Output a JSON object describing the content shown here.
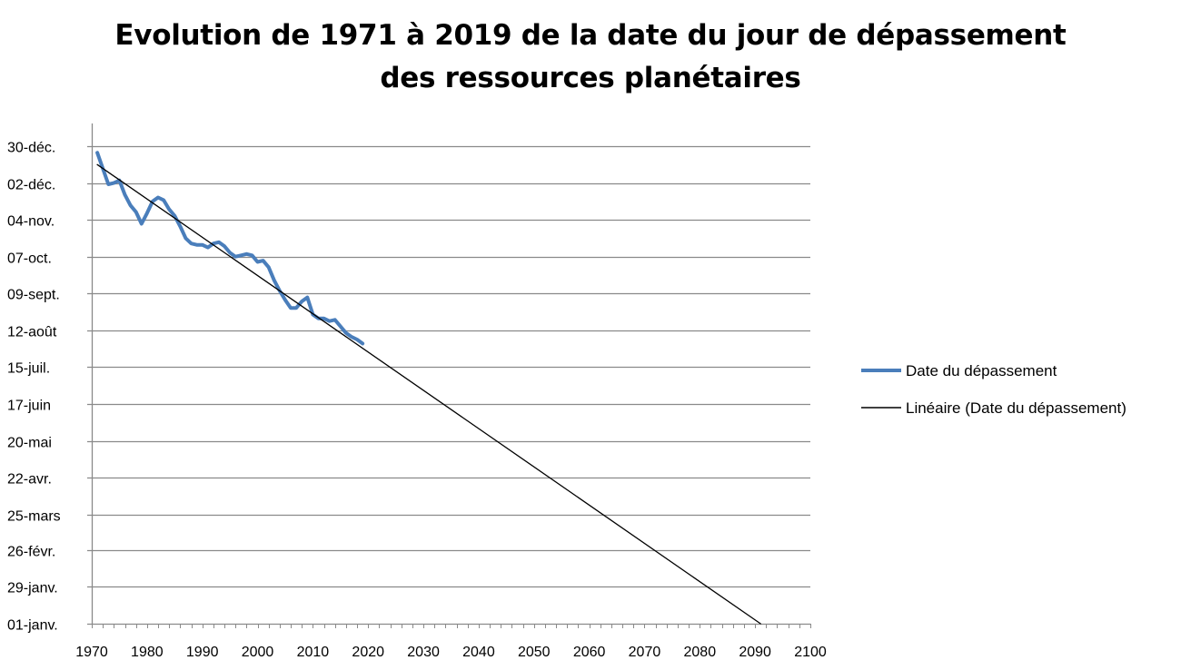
{
  "chart_data": {
    "type": "line",
    "title_lines": [
      "Evolution de 1971 à 2019 de la date du jour de dépassement",
      "des ressources planétaires"
    ],
    "xlabel": "",
    "ylabel": "",
    "xlim": [
      1970,
      2100
    ],
    "x_ticks": [
      1970,
      1980,
      1990,
      2000,
      2010,
      2020,
      2030,
      2040,
      2050,
      2060,
      2070,
      2080,
      2090,
      2100
    ],
    "y_axis_unit": "day of year",
    "ylim": [
      1,
      364
    ],
    "y_ticks": [
      {
        "label": "01-janv.",
        "value": 1
      },
      {
        "label": "29-janv.",
        "value": 29
      },
      {
        "label": "26-févr.",
        "value": 57
      },
      {
        "label": "25-mars",
        "value": 84
      },
      {
        "label": "22-avr.",
        "value": 112
      },
      {
        "label": "20-mai",
        "value": 140
      },
      {
        "label": "17-juin",
        "value": 168
      },
      {
        "label": "15-juil.",
        "value": 196
      },
      {
        "label": "12-août",
        "value": 224
      },
      {
        "label": "09-sept.",
        "value": 252
      },
      {
        "label": "07-oct.",
        "value": 280
      },
      {
        "label": "04-nov.",
        "value": 308
      },
      {
        "label": "02-déc.",
        "value": 336
      },
      {
        "label": "30-déc.",
        "value": 364
      }
    ],
    "grid": true,
    "legend_position": "right",
    "series": [
      {
        "name": "Date du dépassement",
        "style": "data",
        "color": "#4a7ebb",
        "x": [
          1971,
          1972,
          1973,
          1974,
          1975,
          1976,
          1977,
          1978,
          1979,
          1980,
          1981,
          1982,
          1983,
          1984,
          1985,
          1986,
          1987,
          1988,
          1989,
          1990,
          1991,
          1992,
          1993,
          1994,
          1995,
          1996,
          1997,
          1998,
          1999,
          2000,
          2001,
          2002,
          2003,
          2004,
          2005,
          2006,
          2007,
          2008,
          2009,
          2010,
          2011,
          2012,
          2013,
          2014,
          2015,
          2016,
          2017,
          2018,
          2019
        ],
        "y": [
          359,
          347,
          335,
          336,
          338,
          327,
          319,
          314,
          305,
          313,
          322,
          325,
          323,
          316,
          311,
          303,
          294,
          290,
          289,
          289,
          287,
          290,
          291,
          288,
          283,
          280,
          281,
          282,
          281,
          276,
          277,
          272,
          262,
          254,
          247,
          241,
          241,
          246,
          249,
          236,
          233,
          233,
          231,
          232,
          227,
          222,
          219,
          217,
          214
        ]
      },
      {
        "name": "Linéaire (Date du dépassement)",
        "style": "trend",
        "color": "#000000",
        "x": [
          1971,
          2091
        ],
        "y": [
          350,
          1
        ]
      }
    ]
  }
}
